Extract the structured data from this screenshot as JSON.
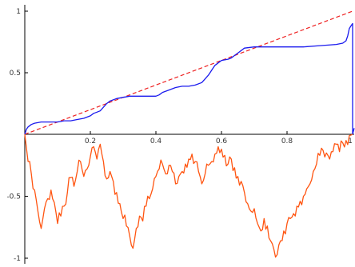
{
  "chart_data": {
    "type": "line",
    "title": "",
    "xlabel": "",
    "ylabel": "",
    "xlim": [
      0,
      1
    ],
    "ylim": [
      -1,
      1
    ],
    "grid": false,
    "x_ticks": [
      0.2,
      0.4,
      0.6,
      0.8,
      1
    ],
    "x_tick_labels": [
      "0.2",
      "0.4",
      "0.6",
      "0.8",
      "1"
    ],
    "y_ticks": [
      1,
      0.5,
      -0.5,
      -1
    ],
    "y_tick_labels": [
      "1",
      "0.5",
      "-0.5",
      "-1"
    ],
    "series": [
      {
        "style": "dashed",
        "color": "#ee2222",
        "x": [
          0,
          1
        ],
        "y": [
          0,
          1
        ]
      },
      {
        "style": "solid",
        "color": "#1a1aee",
        "x": [
          0,
          0.005,
          0.01,
          0.02,
          0.03,
          0.05,
          0.08,
          0.1,
          0.12,
          0.14,
          0.16,
          0.18,
          0.2,
          0.21,
          0.22,
          0.23,
          0.24,
          0.25,
          0.26,
          0.28,
          0.3,
          0.32,
          0.35,
          0.38,
          0.4,
          0.41,
          0.42,
          0.44,
          0.46,
          0.48,
          0.5,
          0.52,
          0.54,
          0.55,
          0.56,
          0.57,
          0.58,
          0.59,
          0.6,
          0.62,
          0.63,
          0.64,
          0.65,
          0.67,
          0.7,
          0.75,
          0.8,
          0.85,
          0.9,
          0.95,
          0.97,
          0.98,
          0.985,
          0.99,
          0.995,
          1.0,
          1.0,
          1.0,
          1.005
        ],
        "y": [
          0,
          0.04,
          0.06,
          0.08,
          0.09,
          0.1,
          0.1,
          0.1,
          0.11,
          0.11,
          0.12,
          0.13,
          0.15,
          0.17,
          0.18,
          0.19,
          0.22,
          0.25,
          0.27,
          0.29,
          0.3,
          0.31,
          0.31,
          0.31,
          0.31,
          0.32,
          0.34,
          0.36,
          0.38,
          0.39,
          0.39,
          0.4,
          0.42,
          0.45,
          0.48,
          0.52,
          0.56,
          0.58,
          0.6,
          0.61,
          0.62,
          0.64,
          0.66,
          0.7,
          0.71,
          0.71,
          0.71,
          0.71,
          0.72,
          0.73,
          0.74,
          0.76,
          0.8,
          0.86,
          0.88,
          0.9,
          0.0,
          0.0,
          0.05
        ]
      },
      {
        "style": "solid",
        "color": "#ff5511",
        "x": [
          0,
          0.01,
          0.02,
          0.03,
          0.04,
          0.05,
          0.06,
          0.07,
          0.08,
          0.09,
          0.1,
          0.11,
          0.12,
          0.13,
          0.14,
          0.15,
          0.16,
          0.17,
          0.18,
          0.19,
          0.2,
          0.21,
          0.22,
          0.23,
          0.24,
          0.25,
          0.26,
          0.27,
          0.28,
          0.29,
          0.3,
          0.31,
          0.32,
          0.33,
          0.34,
          0.35,
          0.36,
          0.37,
          0.38,
          0.39,
          0.4,
          0.41,
          0.42,
          0.43,
          0.44,
          0.45,
          0.46,
          0.47,
          0.48,
          0.49,
          0.5,
          0.51,
          0.52,
          0.53,
          0.54,
          0.55,
          0.56,
          0.57,
          0.58,
          0.59,
          0.6,
          0.61,
          0.62,
          0.63,
          0.64,
          0.65,
          0.66,
          0.67,
          0.68,
          0.69,
          0.7,
          0.71,
          0.72,
          0.73,
          0.74,
          0.75,
          0.76,
          0.77,
          0.78,
          0.79,
          0.8,
          0.81,
          0.82,
          0.83,
          0.84,
          0.85,
          0.86,
          0.87,
          0.88,
          0.89,
          0.9,
          0.91,
          0.92,
          0.93,
          0.94,
          0.95,
          0.96,
          0.97,
          0.98,
          0.99,
          1.0
        ],
        "y": [
          0,
          -0.22,
          -0.32,
          -0.45,
          -0.62,
          -0.76,
          -0.6,
          -0.52,
          -0.45,
          -0.55,
          -0.72,
          -0.66,
          -0.58,
          -0.47,
          -0.35,
          -0.42,
          -0.3,
          -0.22,
          -0.34,
          -0.28,
          -0.18,
          -0.1,
          -0.2,
          -0.08,
          -0.22,
          -0.36,
          -0.3,
          -0.38,
          -0.47,
          -0.56,
          -0.68,
          -0.74,
          -0.82,
          -0.92,
          -0.76,
          -0.66,
          -0.7,
          -0.58,
          -0.52,
          -0.44,
          -0.34,
          -0.28,
          -0.24,
          -0.32,
          -0.25,
          -0.3,
          -0.4,
          -0.34,
          -0.3,
          -0.24,
          -0.2,
          -0.16,
          -0.22,
          -0.3,
          -0.4,
          -0.32,
          -0.25,
          -0.22,
          -0.16,
          -0.1,
          -0.12,
          -0.17,
          -0.24,
          -0.2,
          -0.27,
          -0.34,
          -0.38,
          -0.47,
          -0.56,
          -0.62,
          -0.6,
          -0.72,
          -0.78,
          -0.68,
          -0.74,
          -0.86,
          -0.93,
          -0.97,
          -0.86,
          -0.78,
          -0.72,
          -0.68,
          -0.64,
          -0.58,
          -0.54,
          -0.5,
          -0.44,
          -0.4,
          -0.3,
          -0.24,
          -0.17,
          -0.13,
          -0.15,
          -0.2,
          -0.14,
          -0.08,
          -0.14,
          -0.07,
          -0.05,
          -0.01,
          0
        ]
      }
    ]
  }
}
